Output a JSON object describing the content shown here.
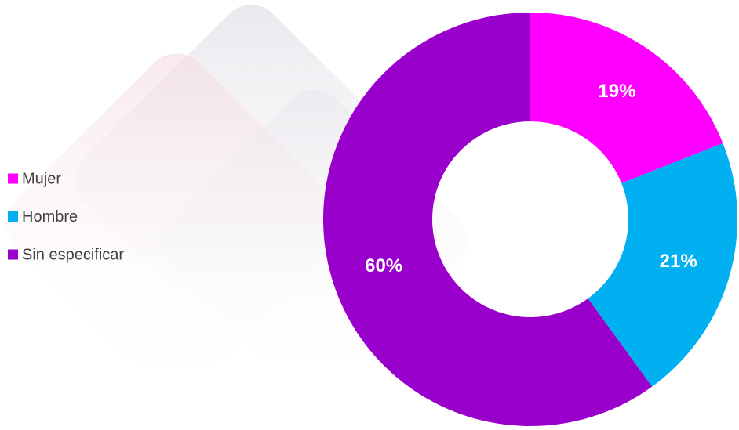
{
  "chart_data": {
    "type": "pie",
    "categories": [
      "Mujer",
      "Hombre",
      "Sin especificar"
    ],
    "values": [
      19,
      21,
      60
    ],
    "value_labels": [
      "19%",
      "21%",
      "60%"
    ],
    "colors": [
      "#ff00ff",
      "#00b0f0",
      "#9900cc"
    ],
    "donut": true,
    "legend": "left"
  }
}
